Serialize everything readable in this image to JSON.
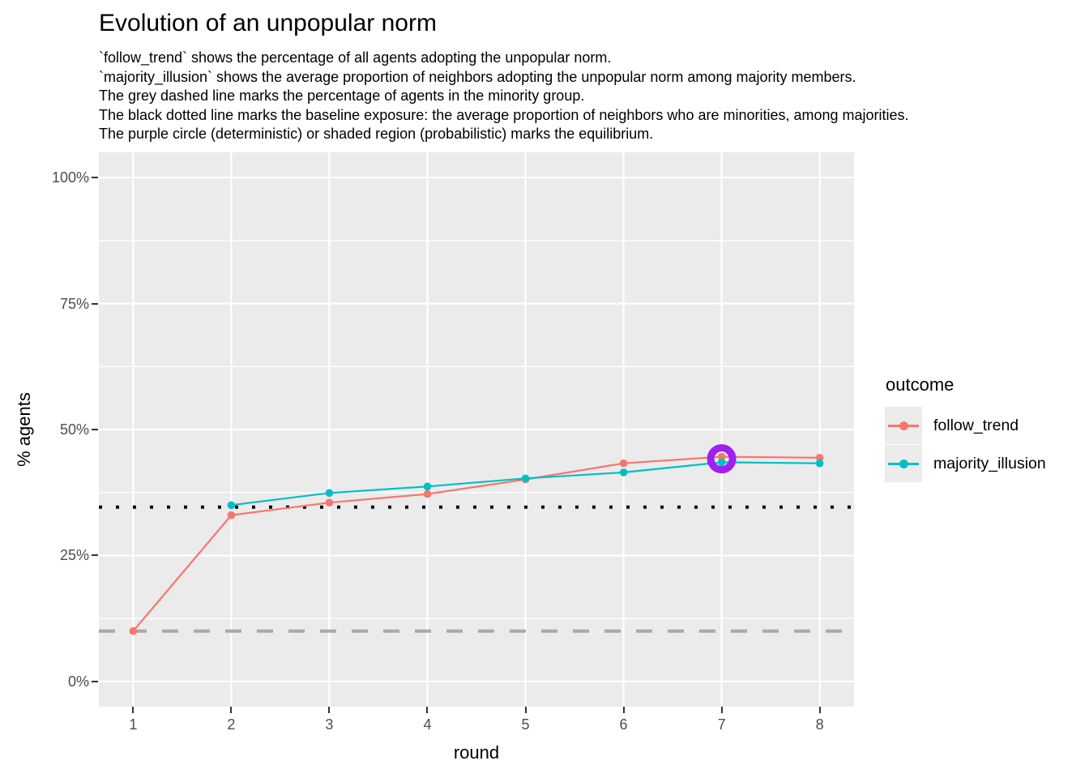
{
  "title": "Evolution of an unpopular norm",
  "subtitle_lines": [
    "`follow_trend` shows the percentage of all agents adopting the unpopular norm.",
    "`majority_illusion` shows the average proportion of neighbors adopting the unpopular norm among majority members.",
    "The grey dashed line marks the percentage of agents in the minority group.",
    "The black dotted line marks the baseline exposure: the average proportion of neighbors who are minorities, among majorities.",
    "The purple circle (deterministic) or shaded region (probabilistic) marks the equilibrium."
  ],
  "chart_data": {
    "type": "line",
    "x": [
      1,
      2,
      3,
      4,
      5,
      6,
      7,
      8
    ],
    "x_tick_labels": [
      "1",
      "2",
      "3",
      "4",
      "5",
      "6",
      "7",
      "8"
    ],
    "xlabel": "round",
    "ylabel": "% agents",
    "y_ticks": [
      0,
      25,
      50,
      75,
      100
    ],
    "y_tick_labels": [
      "0%",
      "25%",
      "50%",
      "75%",
      "100%"
    ],
    "y_minor_ticks": [
      12.5,
      37.5,
      62.5,
      87.5
    ],
    "xlim": [
      0.65,
      8.35
    ],
    "ylim": [
      -5,
      105
    ],
    "grid": true,
    "panel_bg": "#EBEBEB",
    "gridline_color": "#FFFFFF",
    "series": [
      {
        "name": "follow_trend",
        "color": "#F8766D",
        "values": [
          10,
          33,
          35.5,
          37.2,
          40.1,
          43.3,
          44.6,
          44.4
        ]
      },
      {
        "name": "majority_illusion",
        "color": "#00BFC4",
        "values": [
          null,
          35,
          37.4,
          38.7,
          40.3,
          41.5,
          43.5,
          43.3
        ]
      }
    ],
    "reference_lines": [
      {
        "name": "minority-percentage",
        "style": "dashed",
        "color": "#A9A9A9",
        "y": 10
      },
      {
        "name": "baseline-exposure",
        "style": "dotted",
        "color": "#000000",
        "y": 34.6
      }
    ],
    "equilibrium_marker": {
      "shape": "circle",
      "color": "#A020F0",
      "x": 7,
      "y": 44.2
    },
    "legend": {
      "title": "outcome",
      "position": "right",
      "entries": [
        {
          "label": "follow_trend",
          "color": "#F8766D"
        },
        {
          "label": "majority_illusion",
          "color": "#00BFC4"
        }
      ]
    }
  }
}
